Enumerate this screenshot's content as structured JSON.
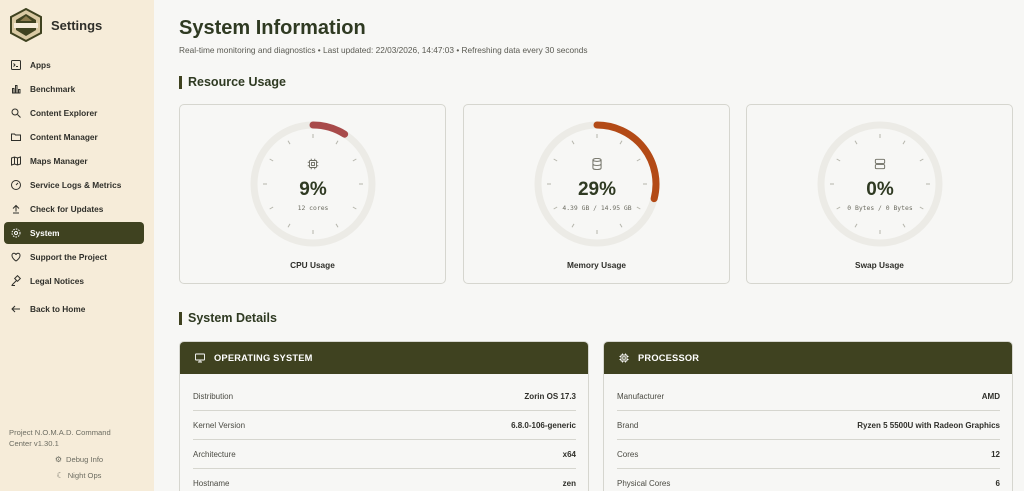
{
  "sidebar": {
    "title": "Settings",
    "items": [
      {
        "label": "Apps",
        "icon": "terminal-icon"
      },
      {
        "label": "Benchmark",
        "icon": "chart-icon"
      },
      {
        "label": "Content Explorer",
        "icon": "search-icon"
      },
      {
        "label": "Content Manager",
        "icon": "folder-icon"
      },
      {
        "label": "Maps Manager",
        "icon": "map-icon"
      },
      {
        "label": "Service Logs & Metrics",
        "icon": "gauge-icon"
      },
      {
        "label": "Check for Updates",
        "icon": "upload-icon"
      },
      {
        "label": "System",
        "icon": "gear-icon",
        "active": true
      },
      {
        "label": "Support the Project",
        "icon": "heart-icon"
      },
      {
        "label": "Legal Notices",
        "icon": "gavel-icon"
      }
    ],
    "back_label": "Back to Home",
    "footer_line1": "Project N.O.M.A.D. Command",
    "footer_line2": "Center v1.30.1",
    "debug_label": "Debug Info",
    "night_label": "Night Ops"
  },
  "header": {
    "title": "System Information",
    "subtitle": "Real-time monitoring and diagnostics • Last updated: 22/03/2026, 14:47:03 • Refreshing data every 30 seconds"
  },
  "resource": {
    "section_title": "Resource Usage",
    "gauges": [
      {
        "label": "CPU Usage",
        "value_text": "9%",
        "percent": 9,
        "sub": "12 cores",
        "color": "#a84a4a",
        "icon": "cpu-icon"
      },
      {
        "label": "Memory Usage",
        "value_text": "29%",
        "percent": 29,
        "sub": "4.39 GB / 14.95 GB",
        "color": "#b34a16",
        "icon": "database-icon"
      },
      {
        "label": "Swap Usage",
        "value_text": "0%",
        "percent": 0,
        "sub": "0 Bytes / 0 Bytes",
        "color": "#6d6d62",
        "icon": "server-icon"
      }
    ]
  },
  "details": {
    "section_title": "System Details",
    "os": {
      "title": "OPERATING SYSTEM",
      "rows": [
        {
          "k": "Distribution",
          "v": "Zorin OS 17.3"
        },
        {
          "k": "Kernel Version",
          "v": "6.8.0-106-generic"
        },
        {
          "k": "Architecture",
          "v": "x64"
        },
        {
          "k": "Hostname",
          "v": "zen"
        }
      ]
    },
    "cpu": {
      "title": "PROCESSOR",
      "rows": [
        {
          "k": "Manufacturer",
          "v": "AMD"
        },
        {
          "k": "Brand",
          "v": "Ryzen 5 5500U with Radeon Graphics"
        },
        {
          "k": "Cores",
          "v": "12"
        },
        {
          "k": "Physical Cores",
          "v": "6"
        }
      ]
    }
  },
  "colors": {
    "accent": "#3f4220",
    "sidebar_bg": "#f6ecd9"
  }
}
